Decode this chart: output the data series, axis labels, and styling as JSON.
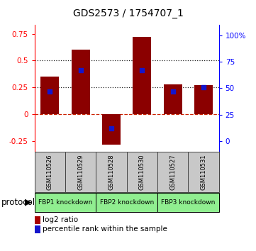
{
  "title": "GDS2573 / 1754707_1",
  "samples": [
    "GSM110526",
    "GSM110529",
    "GSM110528",
    "GSM110530",
    "GSM110527",
    "GSM110531"
  ],
  "log2_ratios": [
    0.35,
    0.6,
    -0.28,
    0.72,
    0.28,
    0.27
  ],
  "percentile_ranks": [
    47,
    67,
    12,
    67,
    47,
    51
  ],
  "bar_color": "#8B0000",
  "dot_color": "#1515CC",
  "ylim_left": [
    -0.35,
    0.83
  ],
  "ylim_right": [
    -10.4,
    110
  ],
  "yticks_left": [
    -0.25,
    0,
    0.25,
    0.5,
    0.75
  ],
  "yticks_right": [
    0,
    25,
    50,
    75,
    100
  ],
  "ytick_labels_left": [
    "-0.25",
    "0",
    "0.25",
    "0.5",
    "0.75"
  ],
  "ytick_labels_right": [
    "0",
    "25",
    "50",
    "75",
    "100%"
  ],
  "hlines": [
    0.5,
    0.25
  ],
  "zero_line_color": "#CC2200",
  "hline_color": "#222222",
  "groups": [
    {
      "label": "FBP1 knockdown",
      "start": 0,
      "end": 1
    },
    {
      "label": "FBP2 knockdown",
      "start": 2,
      "end": 3
    },
    {
      "label": "FBP3 knockdown",
      "start": 4,
      "end": 5
    }
  ],
  "group_color": "#90EE90",
  "protocol_label": "protocol",
  "legend_bar_label": "log2 ratio",
  "legend_dot_label": "percentile rank within the sample",
  "bar_width": 0.6,
  "sample_box_color": "#C8C8C8",
  "sample_box_edge": "#444444"
}
